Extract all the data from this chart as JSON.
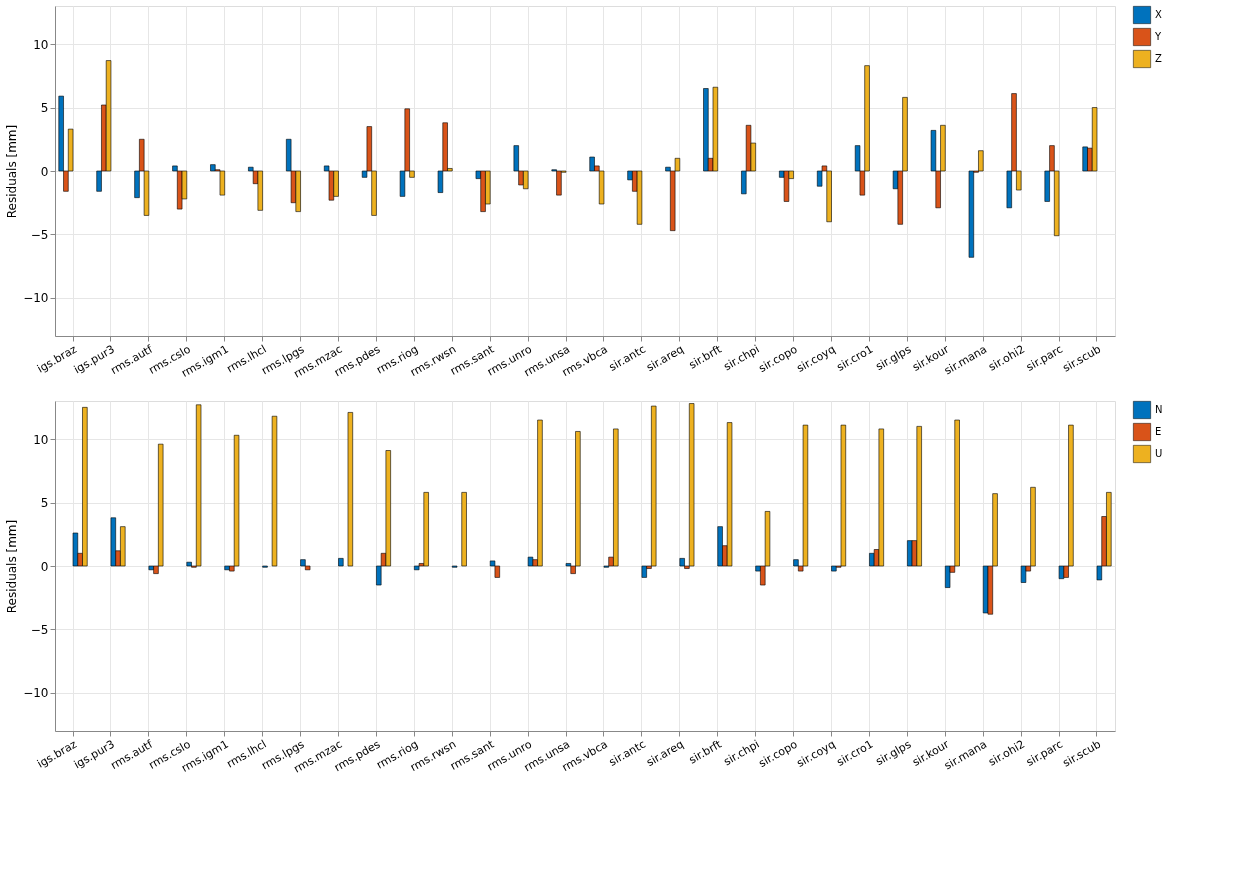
{
  "chart_data": [
    {
      "type": "bar",
      "ylabel": "Residuals [mm]",
      "categories": [
        "igs.braz",
        "igs.pur3",
        "rms.autf",
        "rms.cslo",
        "rms.igm1",
        "rms.lhcl",
        "rms.lpgs",
        "rms.mzac",
        "rms.pdes",
        "rms.riog",
        "rms.rwsn",
        "rms.sant",
        "rms.unro",
        "rms.unsa",
        "rms.vbca",
        "sir.antc",
        "sir.areq",
        "sir.brft",
        "sir.chpi",
        "sir.copo",
        "sir.coyq",
        "sir.cro1",
        "sir.glps",
        "sir.kour",
        "sir.mana",
        "sir.ohi2",
        "sir.parc",
        "sir.scub"
      ],
      "series": [
        {
          "name": "X",
          "color": "#0072bd",
          "values": [
            5.9,
            -1.6,
            -2.1,
            0.4,
            0.5,
            0.3,
            2.5,
            0.4,
            -0.5,
            -2.0,
            -1.7,
            -0.6,
            2.0,
            0.1,
            1.1,
            -0.7,
            0.3,
            6.5,
            -1.8,
            -0.5,
            -1.2,
            2.0,
            -1.4,
            3.2,
            -6.8,
            -2.9,
            -2.4,
            1.9
          ]
        },
        {
          "name": "Y",
          "color": "#d95319",
          "values": [
            -1.6,
            5.2,
            2.5,
            -3.0,
            0.1,
            -1.0,
            -2.5,
            -2.3,
            3.5,
            4.9,
            3.8,
            -3.2,
            -1.1,
            -1.9,
            0.4,
            -1.6,
            -4.7,
            1.0,
            3.6,
            -2.4,
            0.4,
            -1.9,
            -4.2,
            -2.9,
            -0.1,
            6.1,
            2.0,
            1.8
          ]
        },
        {
          "name": "Z",
          "color": "#edb120",
          "values": [
            3.3,
            8.7,
            -3.5,
            -2.2,
            -1.9,
            -3.1,
            -3.2,
            -2.0,
            -3.5,
            -0.5,
            0.2,
            -2.6,
            -1.4,
            -0.1,
            -2.6,
            -4.2,
            1.0,
            6.6,
            2.2,
            -0.6,
            -4.0,
            8.3,
            5.8,
            3.6,
            1.6,
            -1.5,
            -5.1,
            5.0
          ]
        }
      ],
      "ylim": [
        -13,
        13
      ],
      "yticks": [
        -10,
        -5,
        0,
        5,
        10
      ],
      "grid": true,
      "legend": "top right"
    },
    {
      "type": "bar",
      "ylabel": "Residuals [mm]",
      "categories": [
        "igs.braz",
        "igs.pur3",
        "rms.autf",
        "rms.cslo",
        "rms.igm1",
        "rms.lhcl",
        "rms.lpgs",
        "rms.mzac",
        "rms.pdes",
        "rms.riog",
        "rms.rwsn",
        "rms.sant",
        "rms.unro",
        "rms.unsa",
        "rms.vbca",
        "sir.antc",
        "sir.areq",
        "sir.brft",
        "sir.chpi",
        "sir.copo",
        "sir.coyq",
        "sir.cro1",
        "sir.glps",
        "sir.kour",
        "sir.mana",
        "sir.ohi2",
        "sir.parc",
        "sir.scub"
      ],
      "series": [
        {
          "name": "N",
          "color": "#0072bd",
          "values": [
            2.6,
            3.8,
            -0.3,
            0.3,
            -0.3,
            -0.1,
            0.5,
            0.6,
            -1.5,
            -0.3,
            -0.1,
            0.4,
            0.7,
            0.2,
            -0.1,
            -0.9,
            0.6,
            3.1,
            -0.4,
            0.5,
            -0.4,
            1.0,
            2.0,
            -1.7,
            -3.7,
            -1.3,
            -1.0,
            -1.1
          ]
        },
        {
          "name": "E",
          "color": "#d95319",
          "values": [
            1.0,
            1.2,
            -0.6,
            -0.1,
            -0.4,
            0.0,
            -0.3,
            0.0,
            1.0,
            0.2,
            0.0,
            -0.9,
            0.5,
            -0.6,
            0.7,
            -0.2,
            -0.2,
            1.6,
            -1.5,
            -0.4,
            -0.1,
            1.3,
            2.0,
            -0.5,
            -3.8,
            -0.4,
            -0.9,
            3.9
          ]
        },
        {
          "name": "U",
          "color": "#edb120",
          "values": [
            12.5,
            3.1,
            9.6,
            12.7,
            10.3,
            11.8,
            null,
            12.1,
            9.1,
            5.8,
            5.8,
            null,
            11.5,
            10.6,
            10.8,
            12.6,
            12.8,
            11.3,
            4.3,
            11.1,
            11.1,
            10.8,
            11.0,
            11.5,
            5.7,
            6.2,
            11.1,
            5.8
          ]
        }
      ],
      "ylim": [
        -13,
        13
      ],
      "yticks": [
        -10,
        -5,
        0,
        5,
        10
      ],
      "grid": true,
      "legend": "top right"
    }
  ]
}
